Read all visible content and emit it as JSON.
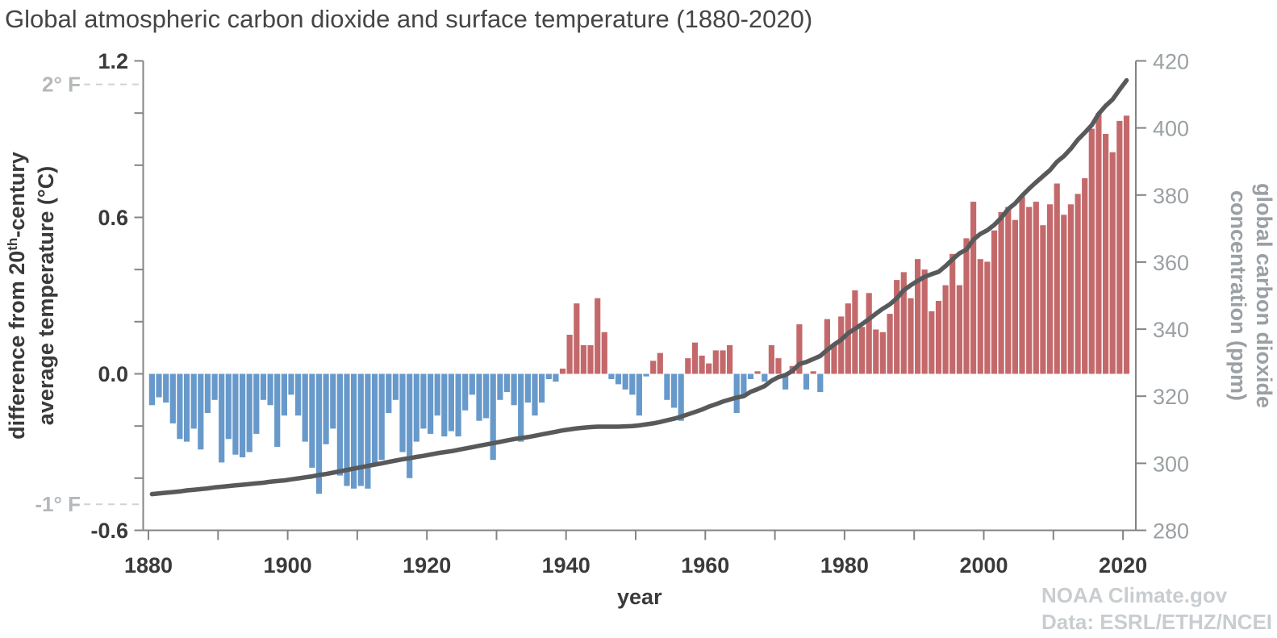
{
  "title": "Global atmospheric carbon dioxide and surface temperature (1880-2020)",
  "credits": {
    "source": "NOAA Climate.gov",
    "data_note": "Data: ESRL/ETHZ/NCEI"
  },
  "colors": {
    "positive_bar": "#c4696b",
    "negative_bar": "#6899cb",
    "co2_line": "#58595b",
    "axis_line": "#848484",
    "dark_label": "#3a3a3a",
    "gray_label": "#9aa0a3",
    "light_label": "#b4b8ba",
    "dashed_ref": "#d2d2d2",
    "title_text": "#454545",
    "credits_text": "#c9cdd0"
  },
  "chart_data": {
    "type": "combo-bar-line",
    "grid": "off",
    "legend": "none",
    "x_axis": {
      "label": "year",
      "range": [
        1880,
        2020
      ],
      "major_ticks": [
        1880,
        1900,
        1920,
        1940,
        1960,
        1980,
        2000,
        2020
      ],
      "minor_ticks": [
        1890,
        1910,
        1930,
        1950,
        1970,
        1990,
        2010
      ]
    },
    "y_left_axis": {
      "title_line1_parts": [
        {
          "t": "difference from 20"
        },
        {
          "t": "th",
          "sup": true
        },
        {
          "t": "-century"
        }
      ],
      "title_line2": "average temperature (°C)",
      "range": [
        -0.6,
        1.2
      ],
      "tick_step": 0.2,
      "labeled_values": [
        1.2,
        0.6,
        0,
        -0.6
      ],
      "labeled_ticks": [
        "1.2",
        "0.6",
        "0.0",
        "-0.6"
      ],
      "fahrenheit_refs": [
        {
          "label": "2° F",
          "c_value": 1.11
        },
        {
          "label": "-1° F",
          "c_value": -0.5
        }
      ]
    },
    "y_right_axis": {
      "title_line1": "global carbon dioxide",
      "title_line2": "concentration (ppm)",
      "range": [
        280,
        420
      ],
      "tick_step": 20,
      "labeled_ticks": [
        420,
        400,
        380,
        360,
        340,
        320,
        300,
        280
      ]
    },
    "start_year": 1880,
    "series": [
      {
        "name": "surface temperature anomaly vs 20th-century average (°C)",
        "type": "bar",
        "values": [
          -0.12,
          -0.09,
          -0.11,
          -0.19,
          -0.25,
          -0.26,
          -0.21,
          -0.29,
          -0.15,
          -0.1,
          -0.34,
          -0.25,
          -0.31,
          -0.32,
          -0.3,
          -0.23,
          -0.1,
          -0.12,
          -0.28,
          -0.16,
          -0.08,
          -0.16,
          -0.26,
          -0.36,
          -0.46,
          -0.27,
          -0.21,
          -0.39,
          -0.43,
          -0.44,
          -0.43,
          -0.44,
          -0.35,
          -0.33,
          -0.15,
          -0.1,
          -0.3,
          -0.4,
          -0.26,
          -0.21,
          -0.23,
          -0.16,
          -0.24,
          -0.22,
          -0.24,
          -0.14,
          -0.08,
          -0.18,
          -0.17,
          -0.33,
          -0.1,
          -0.07,
          -0.12,
          -0.26,
          -0.11,
          -0.16,
          -0.11,
          -0.02,
          -0.03,
          0.02,
          0.15,
          0.27,
          0.11,
          0.11,
          0.29,
          0.16,
          -0.02,
          -0.04,
          -0.06,
          -0.08,
          -0.16,
          -0.01,
          0.05,
          0.08,
          -0.1,
          -0.13,
          -0.18,
          0.06,
          0.12,
          0.07,
          0.04,
          0.09,
          0.09,
          0.11,
          -0.15,
          -0.09,
          -0.02,
          0.01,
          -0.03,
          0.11,
          0.06,
          -0.06,
          0.03,
          0.19,
          -0.06,
          0.01,
          -0.07,
          0.21,
          0.11,
          0.22,
          0.27,
          0.32,
          0.18,
          0.31,
          0.17,
          0.16,
          0.23,
          0.36,
          0.39,
          0.29,
          0.44,
          0.4,
          0.24,
          0.28,
          0.34,
          0.46,
          0.34,
          0.52,
          0.66,
          0.44,
          0.43,
          0.55,
          0.62,
          0.64,
          0.59,
          0.68,
          0.64,
          0.66,
          0.57,
          0.65,
          0.73,
          0.61,
          0.65,
          0.69,
          0.75,
          0.94,
          1.0,
          0.92,
          0.85,
          0.97,
          0.99
        ]
      },
      {
        "name": "global carbon dioxide concentration (ppm)",
        "type": "line",
        "values": [
          290.8,
          291.0,
          291.2,
          291.4,
          291.6,
          291.9,
          292.1,
          292.3,
          292.5,
          292.8,
          293.0,
          293.2,
          293.4,
          293.6,
          293.8,
          294.0,
          294.2,
          294.5,
          294.7,
          294.9,
          295.2,
          295.5,
          295.8,
          296.1,
          296.5,
          296.8,
          297.2,
          297.6,
          298.0,
          298.4,
          298.8,
          299.2,
          299.6,
          300.0,
          300.4,
          300.8,
          301.2,
          301.5,
          301.9,
          302.2,
          302.6,
          303.0,
          303.3,
          303.6,
          304.0,
          304.4,
          304.8,
          305.2,
          305.6,
          306.0,
          306.4,
          306.8,
          307.2,
          307.5,
          307.8,
          308.2,
          308.6,
          309.0,
          309.4,
          309.8,
          310.1,
          310.4,
          310.6,
          310.8,
          310.9,
          310.9,
          310.9,
          310.9,
          311.0,
          311.1,
          311.3,
          311.6,
          311.9,
          312.3,
          312.8,
          313.3,
          313.9,
          314.6,
          315.3,
          316.0,
          316.9,
          317.6,
          318.4,
          319.0,
          319.6,
          320.0,
          321.3,
          322.1,
          323.0,
          324.6,
          325.7,
          326.3,
          327.5,
          329.6,
          330.2,
          331.1,
          332.0,
          333.8,
          335.4,
          336.8,
          338.8,
          340.1,
          341.5,
          343.0,
          344.6,
          346.1,
          347.4,
          349.2,
          351.6,
          353.1,
          354.4,
          355.6,
          356.4,
          357.1,
          358.8,
          360.8,
          362.6,
          363.7,
          366.7,
          368.4,
          369.5,
          371.1,
          373.2,
          375.8,
          377.5,
          379.8,
          381.9,
          383.8,
          385.6,
          387.4,
          389.9,
          391.6,
          393.8,
          396.5,
          398.6,
          400.8,
          404.2,
          406.6,
          408.5,
          411.4,
          414.2
        ]
      }
    ]
  }
}
